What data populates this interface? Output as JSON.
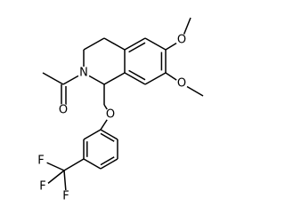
{
  "labels": [
    "O",
    "N",
    "O",
    "O",
    "O",
    "F",
    "F",
    "F"
  ]
}
